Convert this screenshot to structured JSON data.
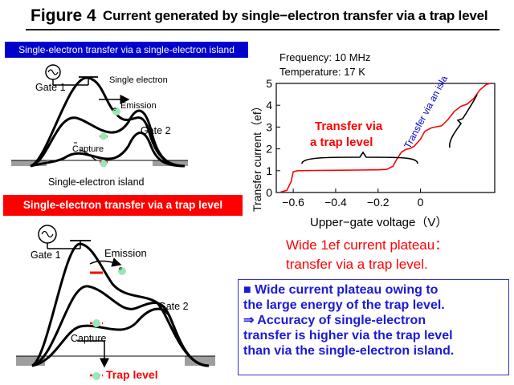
{
  "header": {
    "figure_label": "Figure 4",
    "title": "Current generated by single−electron transfer via a trap level"
  },
  "panel_top": {
    "banner": "Single-electron transfer via a single-electron island",
    "gate1": "Gate 1",
    "gate2": "Gate 2",
    "single_electron": "Single electron",
    "emission": "Emission",
    "capture": "Capture",
    "island": "Single-electron island",
    "electron": "e"
  },
  "panel_bottom": {
    "banner": "Single-electron transfer via a trap level",
    "gate1": "Gate 1",
    "gate2": "Gate 2",
    "emission": "Emission",
    "capture": "Capture",
    "trap_level": "Trap level",
    "electron": "e"
  },
  "conditions": {
    "frequency": "Frequency: 10 MHz",
    "temperature": "Temperature: 17 K"
  },
  "chart_data": {
    "type": "line",
    "xlabel": "Upper−gate voltage（V）",
    "ylabel": "Transfer current（ef）",
    "xlim": [
      -0.68,
      0.35
    ],
    "ylim": [
      0,
      5
    ],
    "x_ticks": [
      -0.6,
      -0.4,
      -0.2,
      0
    ],
    "x_tick_labels": [
      "−0.6",
      "−0.4",
      "−0.2",
      "0"
    ],
    "y_ticks": [
      0,
      1,
      2,
      3,
      4,
      5
    ],
    "y_tick_labels": [
      "0",
      "1",
      "2",
      "3",
      "4",
      "5"
    ],
    "series": [
      {
        "color": "#ff0000",
        "x": [
          -0.66,
          -0.63,
          -0.61,
          -0.6,
          -0.58,
          -0.5,
          -0.4,
          -0.3,
          -0.2,
          -0.16,
          -0.13,
          -0.11,
          -0.09,
          -0.07,
          -0.05,
          -0.03,
          0.0,
          0.02,
          0.05,
          0.07,
          0.1,
          0.13,
          0.16,
          0.19,
          0.22,
          0.25,
          0.28,
          0.31,
          0.33
        ],
        "y": [
          0.02,
          0.1,
          0.5,
          0.95,
          1.0,
          1.01,
          1.02,
          1.03,
          1.04,
          1.06,
          1.2,
          1.55,
          1.85,
          1.97,
          2.02,
          2.12,
          2.45,
          2.8,
          2.96,
          3.0,
          3.06,
          3.35,
          3.72,
          3.95,
          4.05,
          4.3,
          4.7,
          4.95,
          5.0
        ]
      }
    ],
    "annotations": [
      {
        "text": "Transfer via a trap level",
        "color": "#ff0000"
      },
      {
        "text": "Transfer via an island",
        "color": "#0000cc"
      }
    ],
    "plateau_note_line1": "Wide 1ef current plateau：",
    "plateau_note_line2": "transfer via a trap level.",
    "annotation_line1": "Transfer via",
    "annotation_line2": "a trap level"
  },
  "summary": {
    "line1": "■  Wide current plateau owing to",
    "line2": "the large energy of the trap level.",
    "line3": "⇒ Accuracy of single-electron",
    "line4": "transfer is higher via the trap level",
    "line5": "than via the single-electron island."
  }
}
